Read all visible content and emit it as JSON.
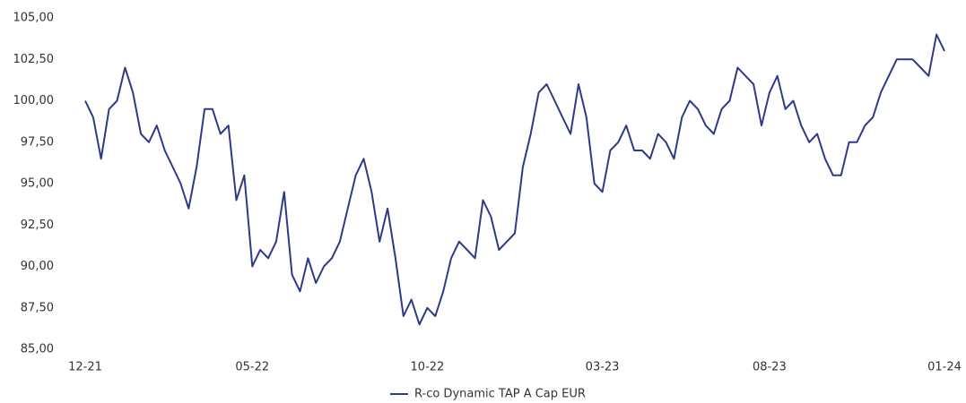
{
  "chart_data": {
    "type": "line",
    "categories": [
      "12-21",
      null,
      null,
      null,
      null,
      null,
      null,
      null,
      null,
      null,
      null,
      null,
      null,
      null,
      null,
      null,
      null,
      null,
      null,
      null,
      null,
      "05-22",
      null,
      null,
      null,
      null,
      null,
      null,
      null,
      null,
      null,
      null,
      null,
      null,
      null,
      null,
      null,
      null,
      null,
      null,
      null,
      null,
      null,
      "10-22",
      null,
      null,
      null,
      null,
      null,
      null,
      null,
      null,
      null,
      null,
      null,
      null,
      null,
      null,
      null,
      null,
      null,
      null,
      null,
      null,
      null,
      "03-23",
      null,
      null,
      null,
      null,
      null,
      null,
      null,
      null,
      null,
      null,
      null,
      null,
      null,
      null,
      null,
      null,
      null,
      null,
      null,
      null,
      "08-23",
      null,
      null,
      null,
      null,
      null,
      null,
      null,
      null,
      null,
      null,
      null,
      null,
      null,
      null,
      null,
      null,
      null,
      null,
      null,
      null,
      null,
      "01-24"
    ],
    "series": [
      {
        "name": "R-co Dynamic TAP A Cap EUR",
        "color": "#2e3a87",
        "values": [
          100,
          99,
          96.5,
          99.5,
          100,
          102,
          100.5,
          98,
          97.5,
          98.5,
          97,
          96,
          95,
          93.5,
          96,
          99.5,
          99.5,
          98,
          98.5,
          94,
          95.5,
          90,
          91,
          90.5,
          91.5,
          94.5,
          89.5,
          88.5,
          90.5,
          89,
          90,
          90.5,
          91.5,
          93.5,
          95.5,
          96.5,
          94.5,
          91.5,
          93.5,
          90.5,
          87,
          88,
          86.5,
          87.5,
          87,
          88.5,
          90.5,
          91.5,
          91,
          90.5,
          94,
          93,
          91,
          91.5,
          92,
          96,
          98,
          100.5,
          101,
          100,
          99,
          98,
          101,
          99,
          95,
          94.5,
          97,
          97.5,
          98.5,
          97,
          97,
          96.5,
          98,
          97.5,
          96.5,
          99,
          100,
          99.5,
          98.5,
          98,
          99.5,
          100,
          102,
          101.5,
          101,
          98.5,
          100.5,
          101.5,
          99.5,
          100,
          98.5,
          97.5,
          98,
          96.5,
          95.5,
          95.5,
          97.5,
          97.5,
          98.5,
          99,
          100.5,
          101.5,
          102.5,
          102.5,
          102.5,
          102,
          101.5,
          104,
          103
        ]
      }
    ],
    "ylim": [
      85,
      105
    ],
    "yticks": [
      {
        "value": 85,
        "label": "85,00"
      },
      {
        "value": 87.5,
        "label": "87,50"
      },
      {
        "value": 90,
        "label": "90,00"
      },
      {
        "value": 92.5,
        "label": "92,50"
      },
      {
        "value": 95,
        "label": "95,00"
      },
      {
        "value": 97.5,
        "label": "97,50"
      },
      {
        "value": 100,
        "label": "100,00"
      },
      {
        "value": 102.5,
        "label": "102,50"
      },
      {
        "value": 105,
        "label": "105,00"
      }
    ],
    "grid": false,
    "legend": "bottom"
  }
}
